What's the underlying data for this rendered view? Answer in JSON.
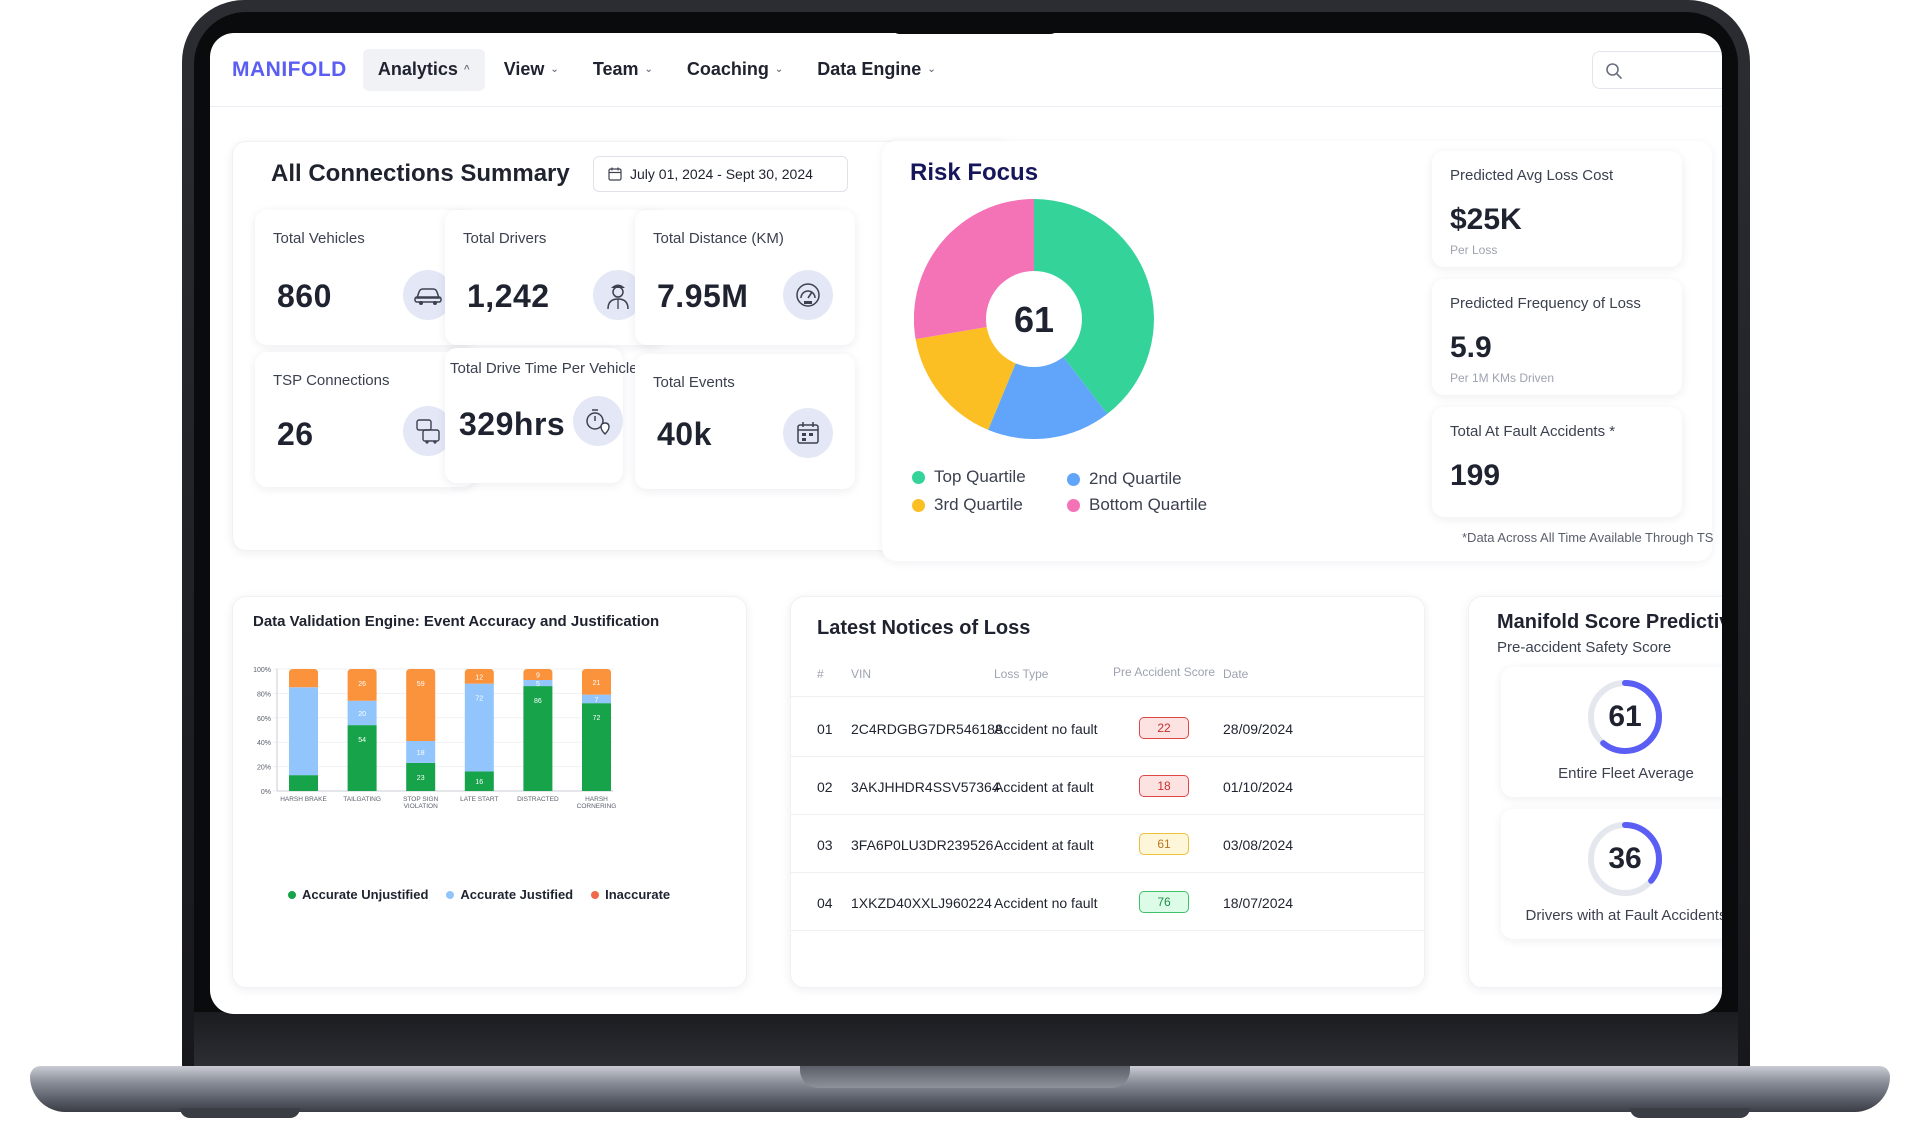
{
  "nav": {
    "logo": "MANIFOLD",
    "items": [
      {
        "label": "Analytics",
        "active": true
      },
      {
        "label": "View"
      },
      {
        "label": "Team"
      },
      {
        "label": "Coaching"
      },
      {
        "label": "Data Engine"
      }
    ],
    "search_icon": "search-icon"
  },
  "summary": {
    "title": "All Connections Summary",
    "date_range": "July 01, 2024 - Sept 30, 2024",
    "stats": [
      {
        "label": "Total Vehicles",
        "value": "860",
        "icon": "car-icon"
      },
      {
        "label": "Total Drivers",
        "value": "1,242",
        "icon": "driver-icon"
      },
      {
        "label": "Total Distance (KM)",
        "value": "7.95M",
        "icon": "speedometer-icon"
      },
      {
        "label": "TSP Connections",
        "value": "26",
        "icon": "vehicles-icon"
      },
      {
        "label": "Total Drive Time Per Vehicle",
        "value": "329hrs",
        "icon": "stopwatch-location-icon"
      },
      {
        "label": "Total Events",
        "value": "40k",
        "icon": "events-icon"
      }
    ]
  },
  "risk": {
    "title": "Risk  Focus",
    "center_value": "61",
    "legend": [
      {
        "label": "Top Quartile",
        "color": "#34d399"
      },
      {
        "label": "2nd Quartile",
        "color": "#60a5fa"
      },
      {
        "label": "3rd Quartile",
        "color": "#fbbf24"
      },
      {
        "label": "Bottom Quartile",
        "color": "#f472b6"
      }
    ],
    "metrics": [
      {
        "label": "Predicted Avg Loss Cost",
        "value": "$25K",
        "sub": "Per Loss"
      },
      {
        "label": "Predicted Frequency of Loss",
        "value": "5.9",
        "sub": "Per 1M KMs Driven"
      },
      {
        "label": "Total At Fault Accidents *",
        "value": "199",
        "sub": ""
      }
    ],
    "footnote": "*Data Across All Time Available Through TS"
  },
  "validation": {
    "title": "Data Validation Engine: Event Accuracy and Justification",
    "legend": [
      {
        "label": "Accurate Unjustified",
        "color": "#16a34a"
      },
      {
        "label": "Accurate Justified",
        "color": "#93c5fd"
      },
      {
        "label": "Inaccurate",
        "color": "#ef6a4c"
      }
    ]
  },
  "chart_data": {
    "type": "bar",
    "stacked": true,
    "categories": [
      "HARSH BRAKE",
      "TAILGATING",
      "STOP SIGN VIOLATION",
      "LATE START",
      "DISTRACTED",
      "HARSH CORNERING"
    ],
    "yticks": [
      "0%",
      "20%",
      "40%",
      "60%",
      "80%",
      "100%"
    ],
    "ylim": [
      0,
      100
    ],
    "series": [
      {
        "name": "Accurate Unjustified",
        "color": "#16a34a",
        "values": [
          13,
          54,
          23,
          16,
          86,
          72
        ],
        "labels": [
          "",
          "54",
          "23",
          "16",
          "86",
          "72"
        ]
      },
      {
        "name": "Accurate Justified",
        "color": "#93c5fd",
        "values": [
          72,
          20,
          18,
          72,
          5,
          7
        ],
        "labels": [
          "",
          "20",
          "18",
          "72",
          "5",
          "7"
        ]
      },
      {
        "name": "Inaccurate",
        "color": "#fb923c",
        "values": [
          15,
          26,
          59,
          12,
          9,
          21
        ],
        "labels": [
          "",
          "26",
          "59",
          "12",
          "9",
          "21"
        ]
      }
    ]
  },
  "notices": {
    "title": "Latest Notices of Loss",
    "columns": [
      "#",
      "VIN",
      "Loss Type",
      "Pre Accident Score",
      "Date"
    ],
    "rows": [
      {
        "num": "01",
        "vin": "2C4RDGBG7DR546188",
        "loss_type": "Accident no fault",
        "score": "22",
        "level": "red",
        "date": "28/09/2024"
      },
      {
        "num": "02",
        "vin": "3AKJHHDR4SSV57364",
        "loss_type": "Accident at fault",
        "score": "18",
        "level": "red",
        "date": "01/10/2024"
      },
      {
        "num": "03",
        "vin": "3FA6P0LU3DR239526",
        "loss_type": "Accident at fault",
        "score": "61",
        "level": "yellow",
        "date": "03/08/2024"
      },
      {
        "num": "04",
        "vin": "1XKZD40XXLJ960224",
        "loss_type": "Accident no fault",
        "score": "76",
        "level": "green",
        "date": "18/07/2024"
      }
    ]
  },
  "manifold_score": {
    "title": "Manifold Score Predictiv",
    "subtitle": "Pre-accident Safety Score",
    "cards": [
      {
        "value": "61",
        "fraction": 0.61,
        "label": "Entire Fleet Average"
      },
      {
        "value": "36",
        "fraction": 0.36,
        "label": "Drivers with at Fault Accidents"
      }
    ]
  }
}
